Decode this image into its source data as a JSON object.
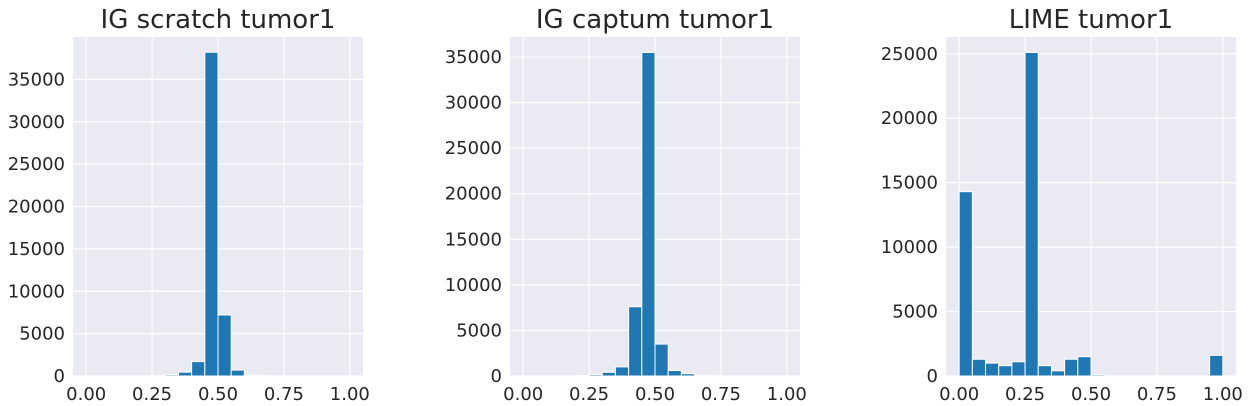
{
  "chart_data": [
    {
      "type": "bar",
      "title": "IG scratch tumor1",
      "xlim": [
        -0.05,
        1.05
      ],
      "ylim": [
        0,
        40000
      ],
      "xticks": [
        "0.00",
        "0.25",
        "0.50",
        "0.75",
        "1.00"
      ],
      "yticks": [
        "0",
        "5000",
        "10000",
        "15000",
        "20000",
        "25000",
        "30000",
        "35000"
      ],
      "bin_edges": [
        0.0,
        0.05,
        0.1,
        0.15,
        0.2,
        0.25,
        0.3,
        0.35,
        0.4,
        0.45,
        0.5,
        0.55,
        0.6,
        0.65,
        0.7,
        0.75,
        0.8,
        0.85,
        0.9,
        0.95,
        1.0
      ],
      "values": [
        0,
        0,
        0,
        0,
        0,
        30,
        150,
        450,
        1700,
        38200,
        7200,
        700,
        120,
        40,
        0,
        0,
        0,
        0,
        0,
        0
      ],
      "color": "#1f77b4",
      "grid": true
    },
    {
      "type": "bar",
      "title": "IG captum tumor1",
      "xlim": [
        -0.05,
        1.05
      ],
      "ylim": [
        0,
        37200
      ],
      "xticks": [
        "0.00",
        "0.25",
        "0.50",
        "0.75",
        "1.00"
      ],
      "yticks": [
        "0",
        "5000",
        "10000",
        "15000",
        "20000",
        "25000",
        "30000",
        "35000"
      ],
      "bin_edges": [
        0.0,
        0.05,
        0.1,
        0.15,
        0.2,
        0.25,
        0.3,
        0.35,
        0.4,
        0.45,
        0.5,
        0.55,
        0.6,
        0.65,
        0.7,
        0.75,
        0.8,
        0.85,
        0.9,
        0.95,
        1.0
      ],
      "values": [
        0,
        0,
        0,
        0,
        50,
        150,
        400,
        1000,
        7600,
        35500,
        3500,
        600,
        250,
        80,
        30,
        0,
        0,
        0,
        0,
        0
      ],
      "color": "#1f77b4",
      "grid": true
    },
    {
      "type": "bar",
      "title": "LIME tumor1",
      "xlim": [
        -0.05,
        1.05
      ],
      "ylim": [
        0,
        26300
      ],
      "xticks": [
        "0.00",
        "0.25",
        "0.50",
        "0.75",
        "1.00"
      ],
      "yticks": [
        "0",
        "5000",
        "10000",
        "15000",
        "20000",
        "25000"
      ],
      "bin_edges": [
        0.0,
        0.05,
        0.1,
        0.15,
        0.2,
        0.25,
        0.3,
        0.35,
        0.4,
        0.45,
        0.5,
        0.55,
        0.6,
        0.65,
        0.7,
        0.75,
        0.8,
        0.85,
        0.9,
        0.95,
        1.0
      ],
      "values": [
        14300,
        1300,
        1000,
        800,
        1100,
        25100,
        800,
        400,
        1300,
        1500,
        100,
        0,
        0,
        0,
        0,
        0,
        0,
        0,
        0,
        1600
      ],
      "color": "#1f77b4",
      "grid": true
    }
  ]
}
